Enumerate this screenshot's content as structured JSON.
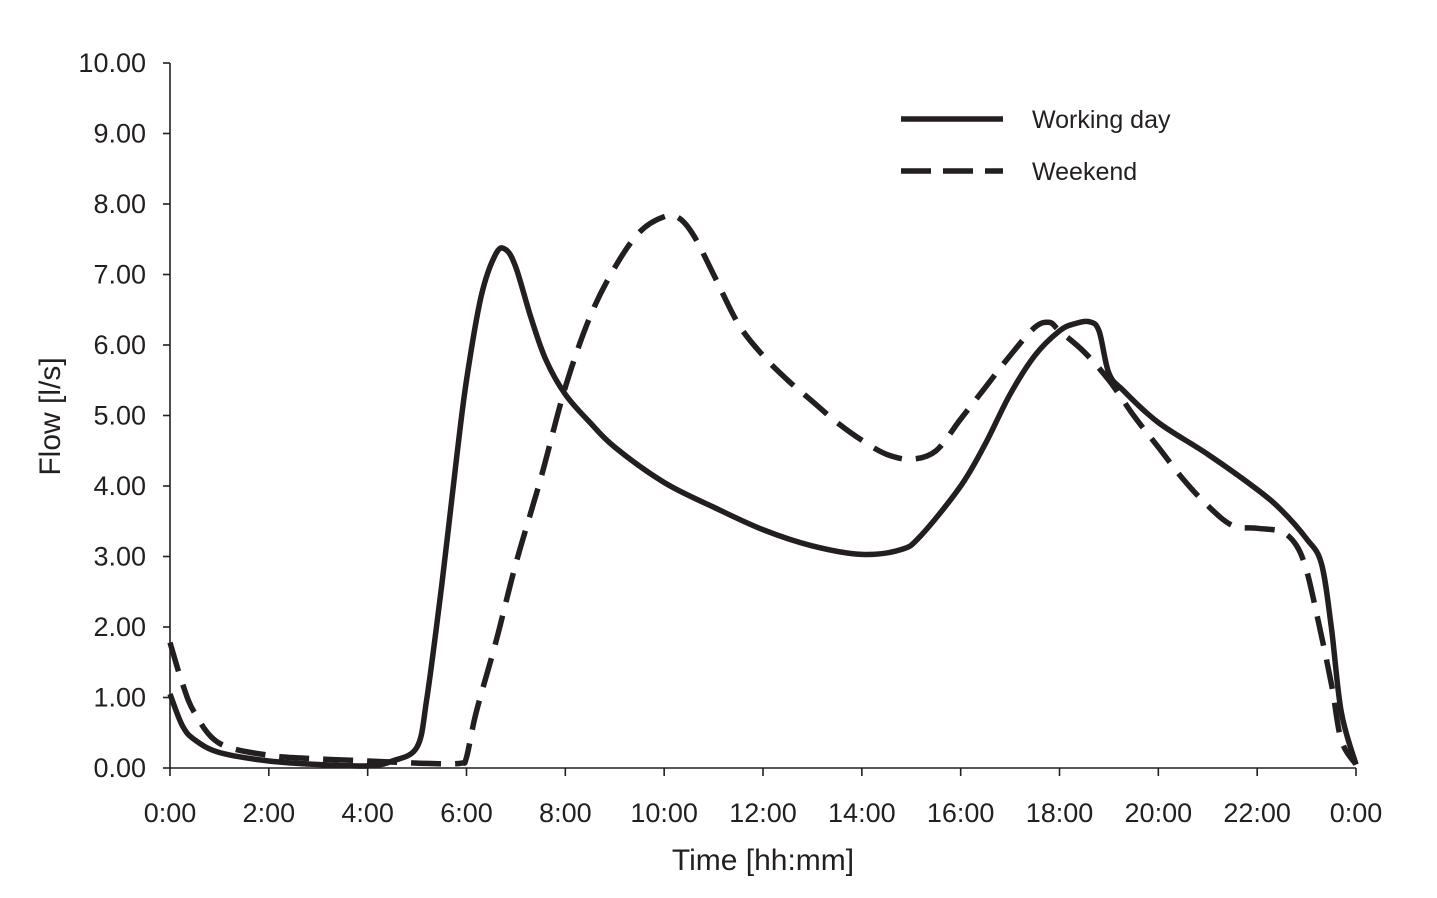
{
  "chart_data": {
    "type": "line",
    "title": "",
    "xlabel": "Time [hh:mm]",
    "ylabel": "Flow [l/s]",
    "xlim": [
      0,
      24
    ],
    "ylim": [
      0,
      10
    ],
    "grid": false,
    "legend_position": "top-right",
    "x_ticks": [
      0,
      2,
      4,
      6,
      8,
      10,
      12,
      14,
      16,
      18,
      20,
      22,
      24
    ],
    "x_tick_labels": [
      "0:00",
      "2:00",
      "4:00",
      "6:00",
      "8:00",
      "10:00",
      "12:00",
      "14:00",
      "16:00",
      "18:00",
      "20:00",
      "22:00",
      "0:00"
    ],
    "y_ticks": [
      0,
      1,
      2,
      3,
      4,
      5,
      6,
      7,
      8,
      9,
      10
    ],
    "y_tick_labels": [
      "0.00",
      "1.00",
      "2.00",
      "3.00",
      "4.00",
      "5.00",
      "6.00",
      "7.00",
      "8.00",
      "9.00",
      "10.00"
    ],
    "series": [
      {
        "name": "Working day",
        "style": "solid",
        "x": [
          0.0,
          0.25,
          0.5,
          1.0,
          2.0,
          3.0,
          4.0,
          4.5,
          5.0,
          5.2,
          5.5,
          5.8,
          6.0,
          6.3,
          6.6,
          6.8,
          7.0,
          7.3,
          7.6,
          8.0,
          8.5,
          9.0,
          10.0,
          11.0,
          12.0,
          13.0,
          14.0,
          14.8,
          15.2,
          16.0,
          16.5,
          17.0,
          17.5,
          18.0,
          18.3,
          18.6,
          18.8,
          19.0,
          19.3,
          20.0,
          21.0,
          22.0,
          22.5,
          23.0,
          23.3,
          23.5,
          23.7,
          24.0
        ],
        "y": [
          1.05,
          0.6,
          0.4,
          0.22,
          0.1,
          0.05,
          0.03,
          0.1,
          0.3,
          1.0,
          2.6,
          4.4,
          5.5,
          6.7,
          7.3,
          7.35,
          7.1,
          6.4,
          5.8,
          5.3,
          4.9,
          4.55,
          4.05,
          3.7,
          3.38,
          3.15,
          3.03,
          3.1,
          3.3,
          4.0,
          4.6,
          5.3,
          5.85,
          6.2,
          6.3,
          6.33,
          6.2,
          5.6,
          5.35,
          4.9,
          4.45,
          3.95,
          3.65,
          3.25,
          2.9,
          2.0,
          0.8,
          0.05
        ]
      },
      {
        "name": "Weekend",
        "style": "dashed",
        "x": [
          0.0,
          0.25,
          0.5,
          1.0,
          2.0,
          3.0,
          4.0,
          5.0,
          5.5,
          5.9,
          6.0,
          6.2,
          6.6,
          7.0,
          7.5,
          8.0,
          8.5,
          9.0,
          9.5,
          10.0,
          10.3,
          10.6,
          11.0,
          11.5,
          12.0,
          12.5,
          13.0,
          13.5,
          14.0,
          14.5,
          15.0,
          15.5,
          16.0,
          16.5,
          17.0,
          17.5,
          17.8,
          18.0,
          18.5,
          19.0,
          19.5,
          20.0,
          20.5,
          21.0,
          21.5,
          22.0,
          22.5,
          22.8,
          23.0,
          23.2,
          23.5,
          23.7,
          24.0
        ],
        "y": [
          1.78,
          1.2,
          0.78,
          0.35,
          0.18,
          0.13,
          0.1,
          0.07,
          0.06,
          0.07,
          0.15,
          0.8,
          1.8,
          2.9,
          4.1,
          5.4,
          6.4,
          7.1,
          7.6,
          7.82,
          7.8,
          7.55,
          7.0,
          6.3,
          5.85,
          5.5,
          5.2,
          4.9,
          4.65,
          4.45,
          4.38,
          4.5,
          4.95,
          5.4,
          5.85,
          6.25,
          6.32,
          6.2,
          5.9,
          5.5,
          5.0,
          4.55,
          4.1,
          3.72,
          3.44,
          3.4,
          3.35,
          3.15,
          2.8,
          2.2,
          1.2,
          0.4,
          0.05
        ]
      }
    ]
  }
}
